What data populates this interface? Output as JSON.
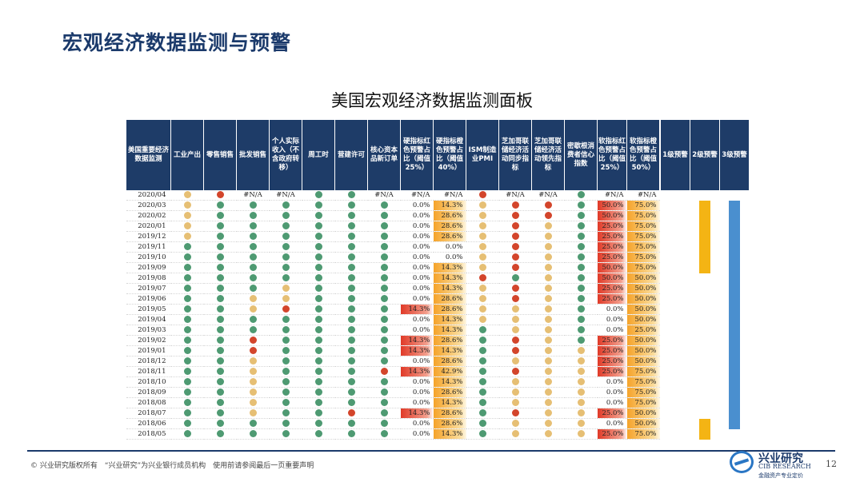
{
  "slide_title": "宏观经济数据监测与预警",
  "chart_title": "美国宏观经济数据监测面板",
  "columns": [
    "美国重要经济数据监测",
    "工业产出",
    "零售销售",
    "批发销售",
    "个人实际收入（不含政府转移）",
    "周工时",
    "营建许可",
    "核心资本品新订单",
    "硬指标红色预警占比（阈值25%）",
    "硬指标橙色预警占比（阈值40%）",
    "ISM制造业PMI",
    "芝加哥联储经济活动同步指标",
    "芝加哥联储经济活动领先指标",
    "密歇根消费者信心指数",
    "软指标红色预警占比（阈值25%）",
    "软指标橙色预警占比（阈值50%）",
    "",
    "1级预警",
    "2级预警",
    "3级预警"
  ],
  "rows": [
    {
      "date": "2020/04",
      "ind1": "y",
      "ind2": "r",
      "ind3": "#N/A",
      "ind4": "#N/A",
      "ind5": "g",
      "ind6": "g",
      "ind7": "#N/A",
      "hard_red": "#N/A",
      "hard_orange": "#N/A",
      "ism": "r",
      "cfnai": "#N/A",
      "leading": "#N/A",
      "umich": "g",
      "soft_red": "#N/A",
      "soft_orange": "#N/A"
    },
    {
      "date": "2020/03",
      "ind1": "y",
      "ind2": "g",
      "ind3": "g",
      "ind4": "g",
      "ind5": "g",
      "ind6": "g",
      "ind7": "g",
      "hard_red": "0.0%",
      "hard_orange": "14.3%",
      "ism": "y",
      "cfnai": "r",
      "leading": "r",
      "umich": "g",
      "soft_red": "50.0%",
      "soft_orange": "75.0%"
    },
    {
      "date": "2020/02",
      "ind1": "y",
      "ind2": "g",
      "ind3": "g",
      "ind4": "g",
      "ind5": "g",
      "ind6": "g",
      "ind7": "g",
      "hard_red": "0.0%",
      "hard_orange": "28.6%",
      "ism": "y",
      "cfnai": "r",
      "leading": "r",
      "umich": "g",
      "soft_red": "50.0%",
      "soft_orange": "75.0%"
    },
    {
      "date": "2020/01",
      "ind1": "y",
      "ind2": "g",
      "ind3": "g",
      "ind4": "g",
      "ind5": "g",
      "ind6": "g",
      "ind7": "g",
      "hard_red": "0.0%",
      "hard_orange": "28.6%",
      "ism": "y",
      "cfnai": "r",
      "leading": "y",
      "umich": "g",
      "soft_red": "25.0%",
      "soft_orange": "75.0%"
    },
    {
      "date": "2019/12",
      "ind1": "y",
      "ind2": "g",
      "ind3": "g",
      "ind4": "g",
      "ind5": "g",
      "ind6": "g",
      "ind7": "g",
      "hard_red": "0.0%",
      "hard_orange": "28.6%",
      "ism": "y",
      "cfnai": "r",
      "leading": "y",
      "umich": "g",
      "soft_red": "25.0%",
      "soft_orange": "75.0%"
    },
    {
      "date": "2019/11",
      "ind1": "g",
      "ind2": "g",
      "ind3": "g",
      "ind4": "g",
      "ind5": "g",
      "ind6": "g",
      "ind7": "g",
      "hard_red": "0.0%",
      "hard_orange": "0.0%",
      "ism": "y",
      "cfnai": "r",
      "leading": "y",
      "umich": "g",
      "soft_red": "25.0%",
      "soft_orange": "75.0%"
    },
    {
      "date": "2019/10",
      "ind1": "g",
      "ind2": "g",
      "ind3": "g",
      "ind4": "g",
      "ind5": "g",
      "ind6": "g",
      "ind7": "g",
      "hard_red": "0.0%",
      "hard_orange": "0.0%",
      "ism": "y",
      "cfnai": "r",
      "leading": "y",
      "umich": "g",
      "soft_red": "25.0%",
      "soft_orange": "75.0%"
    },
    {
      "date": "2019/09",
      "ind1": "g",
      "ind2": "g",
      "ind3": "g",
      "ind4": "g",
      "ind5": "g",
      "ind6": "g",
      "ind7": "g",
      "hard_red": "0.0%",
      "hard_orange": "14.3%",
      "ism": "y",
      "cfnai": "r",
      "leading": "y",
      "umich": "g",
      "soft_red": "50.0%",
      "soft_orange": "75.0%"
    },
    {
      "date": "2019/08",
      "ind1": "g",
      "ind2": "g",
      "ind3": "g",
      "ind4": "g",
      "ind5": "g",
      "ind6": "g",
      "ind7": "g",
      "hard_red": "0.0%",
      "hard_orange": "14.3%",
      "ism": "r",
      "cfnai": "g",
      "leading": "y",
      "umich": "g",
      "soft_red": "50.0%",
      "soft_orange": "50.0%"
    },
    {
      "date": "2019/07",
      "ind1": "g",
      "ind2": "g",
      "ind3": "g",
      "ind4": "y",
      "ind5": "g",
      "ind6": "g",
      "ind7": "g",
      "hard_red": "0.0%",
      "hard_orange": "14.3%",
      "ism": "y",
      "cfnai": "r",
      "leading": "y",
      "umich": "g",
      "soft_red": "25.0%",
      "soft_orange": "50.0%"
    },
    {
      "date": "2019/06",
      "ind1": "g",
      "ind2": "g",
      "ind3": "y",
      "ind4": "y",
      "ind5": "g",
      "ind6": "g",
      "ind7": "g",
      "hard_red": "0.0%",
      "hard_orange": "28.6%",
      "ism": "y",
      "cfnai": "r",
      "leading": "y",
      "umich": "g",
      "soft_red": "25.0%",
      "soft_orange": "50.0%"
    },
    {
      "date": "2019/05",
      "ind1": "g",
      "ind2": "g",
      "ind3": "y",
      "ind4": "r",
      "ind5": "g",
      "ind6": "g",
      "ind7": "g",
      "hard_red": "14.3%",
      "hard_orange": "28.6%",
      "ism": "y",
      "cfnai": "y",
      "leading": "y",
      "umich": "g",
      "soft_red": "0.0%",
      "soft_orange": "50.0%"
    },
    {
      "date": "2019/04",
      "ind1": "g",
      "ind2": "g",
      "ind3": "g",
      "ind4": "g",
      "ind5": "g",
      "ind6": "g",
      "ind7": "g",
      "hard_red": "0.0%",
      "hard_orange": "14.3%",
      "ism": "y",
      "cfnai": "y",
      "leading": "y",
      "umich": "g",
      "soft_red": "0.0%",
      "soft_orange": "50.0%"
    },
    {
      "date": "2019/03",
      "ind1": "g",
      "ind2": "g",
      "ind3": "g",
      "ind4": "g",
      "ind5": "g",
      "ind6": "g",
      "ind7": "g",
      "hard_red": "0.0%",
      "hard_orange": "14.3%",
      "ism": "g",
      "cfnai": "y",
      "leading": "y",
      "umich": "g",
      "soft_red": "0.0%",
      "soft_orange": "25.0%"
    },
    {
      "date": "2019/02",
      "ind1": "g",
      "ind2": "g",
      "ind3": "r",
      "ind4": "g",
      "ind5": "g",
      "ind6": "g",
      "ind7": "g",
      "hard_red": "14.3%",
      "hard_orange": "28.6%",
      "ism": "g",
      "cfnai": "r",
      "leading": "y",
      "umich": "g",
      "soft_red": "25.0%",
      "soft_orange": "50.0%"
    },
    {
      "date": "2019/01",
      "ind1": "g",
      "ind2": "g",
      "ind3": "r",
      "ind4": "g",
      "ind5": "g",
      "ind6": "g",
      "ind7": "g",
      "hard_red": "14.3%",
      "hard_orange": "14.3%",
      "ism": "g",
      "cfnai": "r",
      "leading": "y",
      "umich": "y",
      "soft_red": "25.0%",
      "soft_orange": "50.0%"
    },
    {
      "date": "2018/12",
      "ind1": "g",
      "ind2": "g",
      "ind3": "y",
      "ind4": "g",
      "ind5": "g",
      "ind6": "g",
      "ind7": "g",
      "hard_red": "0.0%",
      "hard_orange": "28.6%",
      "ism": "g",
      "cfnai": "y",
      "leading": "y",
      "umich": "y",
      "soft_red": "25.0%",
      "soft_orange": "50.0%"
    },
    {
      "date": "2018/11",
      "ind1": "g",
      "ind2": "g",
      "ind3": "y",
      "ind4": "g",
      "ind5": "g",
      "ind6": "g",
      "ind7": "r",
      "hard_red": "14.3%",
      "hard_orange": "42.9%",
      "ism": "g",
      "cfnai": "r",
      "leading": "y",
      "umich": "y",
      "soft_red": "25.0%",
      "soft_orange": "75.0%"
    },
    {
      "date": "2018/10",
      "ind1": "g",
      "ind2": "g",
      "ind3": "y",
      "ind4": "g",
      "ind5": "g",
      "ind6": "g",
      "ind7": "g",
      "hard_red": "0.0%",
      "hard_orange": "14.3%",
      "ism": "g",
      "cfnai": "y",
      "leading": "y",
      "umich": "y",
      "soft_red": "0.0%",
      "soft_orange": "75.0%"
    },
    {
      "date": "2018/09",
      "ind1": "g",
      "ind2": "g",
      "ind3": "y",
      "ind4": "g",
      "ind5": "g",
      "ind6": "g",
      "ind7": "g",
      "hard_red": "0.0%",
      "hard_orange": "28.6%",
      "ism": "g",
      "cfnai": "y",
      "leading": "y",
      "umich": "y",
      "soft_red": "0.0%",
      "soft_orange": "75.0%"
    },
    {
      "date": "2018/08",
      "ind1": "g",
      "ind2": "g",
      "ind3": "y",
      "ind4": "g",
      "ind5": "g",
      "ind6": "g",
      "ind7": "g",
      "hard_red": "0.0%",
      "hard_orange": "14.3%",
      "ism": "g",
      "cfnai": "y",
      "leading": "y",
      "umich": "y",
      "soft_red": "0.0%",
      "soft_orange": "75.0%"
    },
    {
      "date": "2018/07",
      "ind1": "g",
      "ind2": "g",
      "ind3": "y",
      "ind4": "g",
      "ind5": "g",
      "ind6": "r",
      "ind7": "g",
      "hard_red": "14.3%",
      "hard_orange": "28.6%",
      "ism": "g",
      "cfnai": "r",
      "leading": "y",
      "umich": "y",
      "soft_red": "25.0%",
      "soft_orange": "50.0%"
    },
    {
      "date": "2018/06",
      "ind1": "g",
      "ind2": "g",
      "ind3": "g",
      "ind4": "g",
      "ind5": "g",
      "ind6": "g",
      "ind7": "g",
      "hard_red": "0.0%",
      "hard_orange": "28.6%",
      "ism": "g",
      "cfnai": "y",
      "leading": "y",
      "umich": "y",
      "soft_red": "0.0%",
      "soft_orange": "50.0%"
    },
    {
      "date": "2018/05",
      "ind1": "g",
      "ind2": "g",
      "ind3": "g",
      "ind4": "g",
      "ind5": "g",
      "ind6": "g",
      "ind7": "g",
      "hard_red": "0.0%",
      "hard_orange": "14.3%",
      "ism": "g",
      "cfnai": "y",
      "leading": "y",
      "umich": "y",
      "soft_red": "25.0%",
      "soft_orange": "75.0%"
    }
  ],
  "alert_bars": {
    "level2": [
      {
        "from": "2020/03",
        "to": "2019/09",
        "color": "#f4b414"
      },
      {
        "from": "2018/06",
        "to": "2018/05",
        "color": "#f4b414"
      }
    ],
    "level3": [
      {
        "from": "2020/03",
        "to": "2018/06",
        "color": "#4a8fcf"
      }
    ]
  },
  "colors": {
    "header_bg": "#1e3c68",
    "green": "#4e9a72",
    "red": "#d3452b",
    "yellow": "#e6bf74",
    "title": "#1b3a6b"
  },
  "footer": {
    "copyright": "© 兴业研究版权所有　“兴业研究”为兴业银行成员机构　使用前请参阅最后一页重要声明",
    "logo_cn": "兴业研究",
    "logo_en": "CIB RESEARCH",
    "logo_tag": "金融资产专业定价",
    "page_number": "12"
  }
}
